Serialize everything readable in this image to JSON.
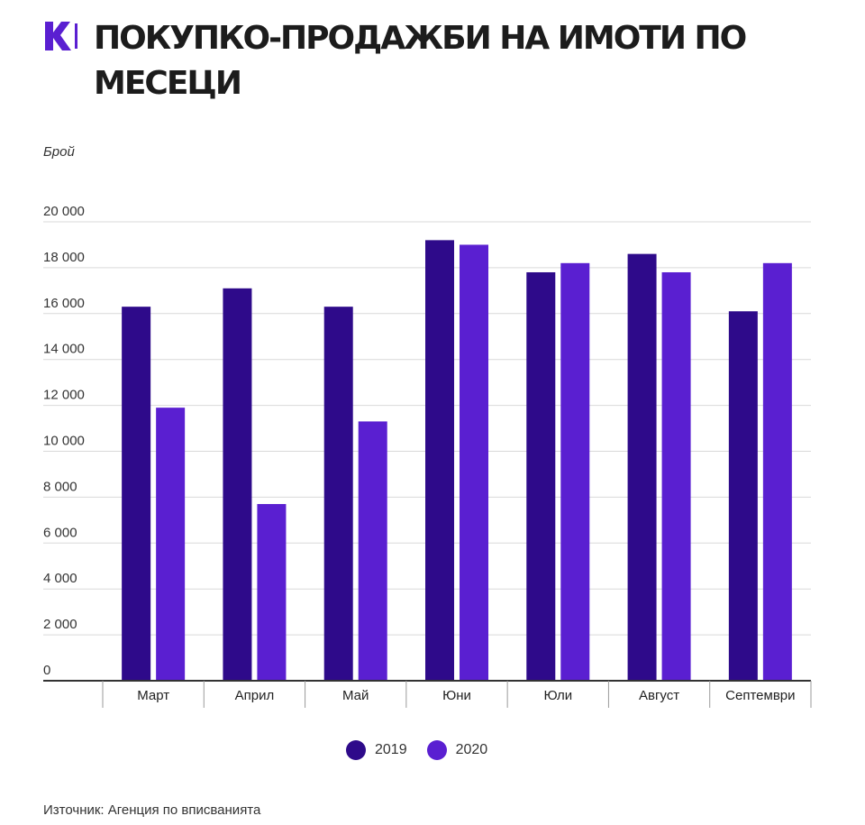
{
  "header": {
    "logo_text": "K",
    "title": "ПОКУПКО-ПРОДАЖБИ НА ИМОТИ ПО МЕСЕЦИ"
  },
  "colors": {
    "series_2019": "#2e0a8a",
    "series_2020": "#5a1fd1",
    "logo": "#5a1fd1",
    "grid": "#d9d9d9",
    "axis": "#333333"
  },
  "chart_data": {
    "type": "bar",
    "title": "ПОКУПКО-ПРОДАЖБИ НА ИМОТИ ПО МЕСЕЦИ",
    "ylabel": "Брой",
    "xlabel": "",
    "categories": [
      "Март",
      "Април",
      "Май",
      "Юни",
      "Юли",
      "Август",
      "Септември"
    ],
    "series": [
      {
        "name": "2019",
        "values": [
          16300,
          17100,
          16300,
          19200,
          17800,
          18600,
          16100
        ]
      },
      {
        "name": "2020",
        "values": [
          11900,
          7700,
          11300,
          19000,
          18200,
          17800,
          18200
        ]
      }
    ],
    "ylim": [
      0,
      20000
    ],
    "yticks": [
      0,
      2000,
      4000,
      6000,
      8000,
      10000,
      12000,
      14000,
      16000,
      18000,
      20000
    ],
    "ytick_labels": [
      "0",
      "2 000",
      "4 000",
      "6 000",
      "8 000",
      "10 000",
      "12 000",
      "14 000",
      "16 000",
      "18 000",
      "20 000"
    ],
    "grid": true,
    "legend_position": "bottom-center"
  },
  "source": "Източник: Агенция по вписванията"
}
